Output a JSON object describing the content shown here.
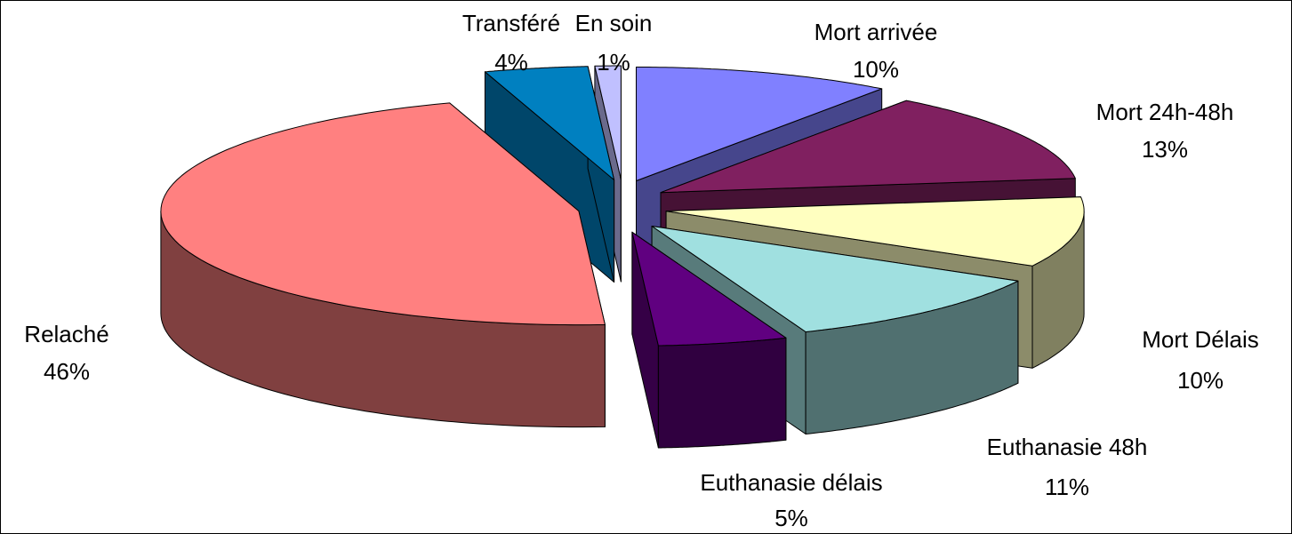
{
  "chart_data": {
    "type": "pie3d",
    "categories": [
      "Mort arrivée",
      "Mort 24h-48h",
      "Mort Délais",
      "Euthanasie 48h",
      "Euthanasie délais",
      "Relaché",
      "Transféré",
      "En soin"
    ],
    "values": [
      10,
      13,
      10,
      11,
      5,
      46,
      4,
      1
    ],
    "value_labels": [
      "10%",
      "13%",
      "10%",
      "11%",
      "5%",
      "46%",
      "4%",
      "1%"
    ],
    "colors": [
      "#8080ff",
      "#802060",
      "#ffffc0",
      "#a0e0e0",
      "#600080",
      "#ff8080",
      "#0080c0",
      "#c0c0ff"
    ],
    "exploded": true
  }
}
